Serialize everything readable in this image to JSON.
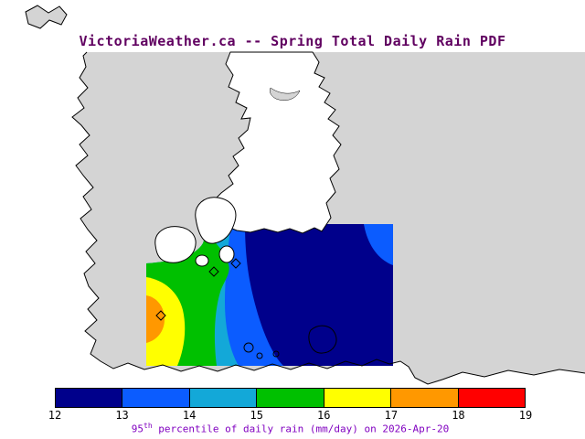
{
  "title": {
    "text": "VictoriaWeather.ca -- Spring Total Daily Rain PDF",
    "color": "#600060"
  },
  "map": {
    "sea_color": "#d4d4d4",
    "land_color": "#ffffff",
    "coast_color": "#000000"
  },
  "colorbar": {
    "ticks": [
      "12",
      "13",
      "14",
      "15",
      "16",
      "17",
      "18",
      "19"
    ],
    "segments": [
      {
        "range": "12-13",
        "color": "#00008b"
      },
      {
        "range": "13-14",
        "color": "#0b5cff"
      },
      {
        "range": "14-15",
        "color": "#13a8d8"
      },
      {
        "range": "15-16",
        "color": "#00c000"
      },
      {
        "range": "16-17",
        "color": "#ffff00"
      },
      {
        "range": "17-18",
        "color": "#ff9800"
      },
      {
        "range": "18-19",
        "color": "#ff0000"
      }
    ],
    "caption": {
      "prefix": "95",
      "superscript": "th",
      "rest": " percentile of daily rain (mm/day) on 2026-Apr-20",
      "color": "#8000c0"
    }
  },
  "chart_data": {
    "type": "heatmap",
    "title": "VictoriaWeather.ca -- Spring Total Daily Rain PDF",
    "variable": "95th percentile of daily rain (mm/day)",
    "date": "2026-Apr-20",
    "units": "mm/day",
    "colorbar_levels": [
      12,
      13,
      14,
      15,
      16,
      17,
      18,
      19
    ],
    "colorbar_colors": [
      "#00008b",
      "#0b5cff",
      "#13a8d8",
      "#00c000",
      "#ffff00",
      "#ff9800",
      "#ff0000"
    ],
    "legend_position": "bottom",
    "notes": "Filled contour field over coastal map; values decrease eastward from ~18 mm/day (orange, west) to ~12 mm/day (navy, east)"
  }
}
